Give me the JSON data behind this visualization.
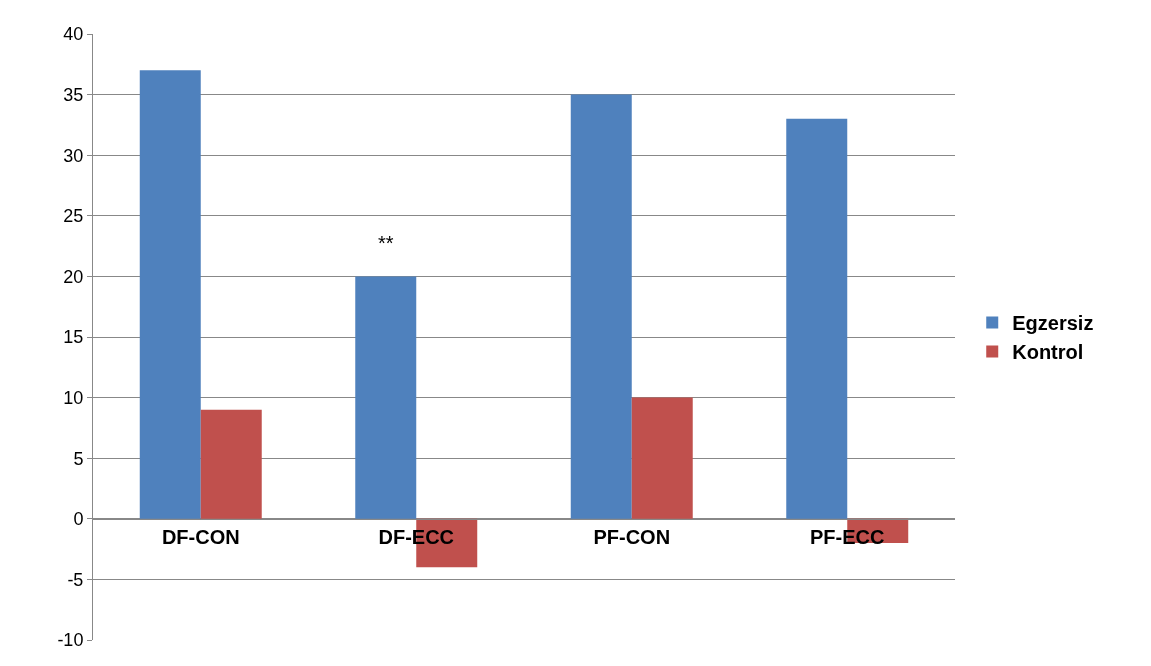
{
  "chart_data": {
    "type": "bar",
    "categories": [
      "DF-CON",
      "DF-ECC",
      "PF-CON",
      "PF-ECC"
    ],
    "series": [
      {
        "name": "Egzersiz",
        "color": "#4f81bd",
        "values": [
          37,
          20,
          35,
          33
        ]
      },
      {
        "name": "Kontrol",
        "color": "#c0504d",
        "values": [
          9,
          -4,
          10,
          -2
        ]
      }
    ],
    "ylim": [
      -10,
      40
    ],
    "yticks": [
      -10,
      -5,
      0,
      5,
      10,
      15,
      20,
      25,
      30,
      35,
      40
    ],
    "grid": "y",
    "legend": "right",
    "annotations": [
      {
        "text": "**",
        "x": "DF-ECC",
        "y": 20
      }
    ]
  }
}
